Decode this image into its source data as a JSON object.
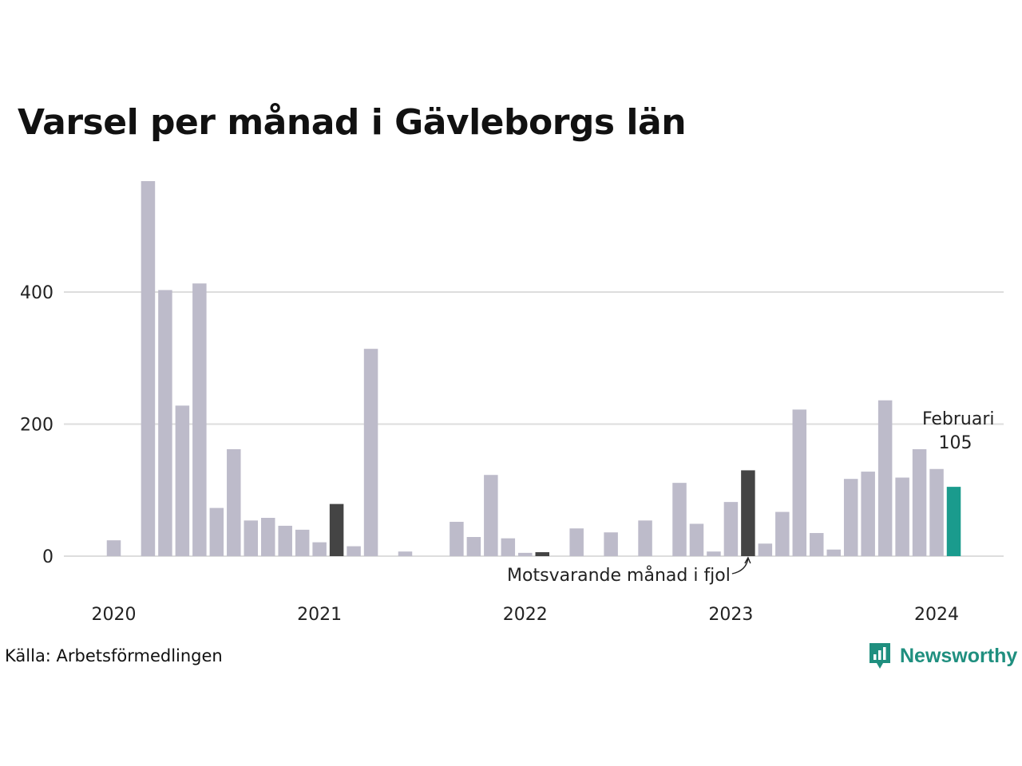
{
  "chart_data": {
    "type": "bar",
    "title": "Varsel per månad i Gävleborgs län",
    "xlabel": "",
    "ylabel": "",
    "ylim": [
      0,
      580
    ],
    "y_ticks": [
      0,
      200,
      400
    ],
    "year_labels": [
      "2020",
      "2021",
      "2022",
      "2023",
      "2024"
    ],
    "grid": true,
    "start": "2020-01",
    "values": [
      24,
      0,
      568,
      403,
      228,
      413,
      73,
      162,
      54,
      58,
      46,
      40,
      21,
      79,
      15,
      314,
      0,
      7,
      0,
      0,
      52,
      29,
      123,
      27,
      5,
      6,
      0,
      42,
      0,
      36,
      0,
      54,
      0,
      111,
      49,
      7,
      82,
      130,
      19,
      67,
      222,
      35,
      10,
      117,
      128,
      236,
      119,
      162,
      132,
      105
    ],
    "highlight": {
      "current_index": 49,
      "previous_year_indices": [
        13,
        25,
        37
      ],
      "label_month": "Februari",
      "label_value": "105"
    },
    "annotation": "Motsvarande månad i fjol",
    "colors": {
      "default": "#bdbbca",
      "previous_year": "#444444",
      "current": "#1a9b8d",
      "grid": "#dddddd"
    }
  },
  "footer": {
    "source": "Källa: Arbetsförmedlingen",
    "brand": "Newsworthy",
    "brand_icon": "newsworthy-logo-icon"
  }
}
